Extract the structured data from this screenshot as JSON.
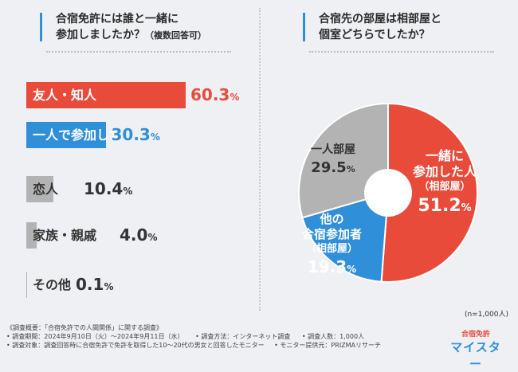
{
  "colors": {
    "red": "#e84b3a",
    "blue": "#2f8fd8",
    "gray": "#b3b3b3",
    "bg": "#eef0f3"
  },
  "left_question": {
    "line1": "合宿免許には誰と一緒に",
    "line2_main": "参加しましたか？",
    "line2_note": "（複数回答可）"
  },
  "right_question": {
    "line1": "合宿先の部屋は相部屋と",
    "line2": "個室どちらでしたか？"
  },
  "chart_data": [
    {
      "type": "bar",
      "orientation": "horizontal",
      "title": "合宿免許には誰と一緒に参加しましたか？（複数回答可）",
      "categories": [
        "友人・知人",
        "一人で参加した",
        "恋人",
        "家族・親戚",
        "その他"
      ],
      "values": [
        60.3,
        30.3,
        10.4,
        4.0,
        0.1
      ],
      "value_labels": [
        "60.3",
        "30.3",
        "10.4",
        "4.0",
        "0.1"
      ],
      "unit": "%",
      "colors": [
        "#e84b3a",
        "#2f8fd8",
        "#b3b3b3",
        "#b3b3b3",
        "#b3b3b3"
      ]
    },
    {
      "type": "pie",
      "title": "合宿先の部屋は相部屋と個室どちらでしたか？",
      "slices": [
        {
          "name": "一緒に参加した人",
          "sub": "（相部屋）",
          "value": 51.2,
          "label": "51.2",
          "color": "#e84b3a"
        },
        {
          "name": "他の合宿参加者",
          "sub": "（相部屋）",
          "value": 19.3,
          "label": "19.3",
          "color": "#2f8fd8"
        },
        {
          "name": "一人部屋",
          "sub": "",
          "value": 29.5,
          "label": "29.5",
          "color": "#b3b3b3"
        }
      ],
      "unit": "%",
      "n_note": "(n=1,000人)"
    }
  ],
  "footer": {
    "r1": "《調査概要：「合宿免許での人間関係」に関する調査》",
    "r2a": "• 調査期間：2024年9月10日（火）～2024年9月11日（水）",
    "r2b": "• 調査方法：インターネット調査",
    "r2c": "• 調査人数：1,000人",
    "r3a": "• 調査対象：調査回答時に合宿免許で免許を取得した10～20代の男女と回答したモニター",
    "r3b": "• モニター提供元：PRIZMAリサーチ"
  },
  "logo": {
    "line1": "合宿免許",
    "line2": "マイスター"
  }
}
